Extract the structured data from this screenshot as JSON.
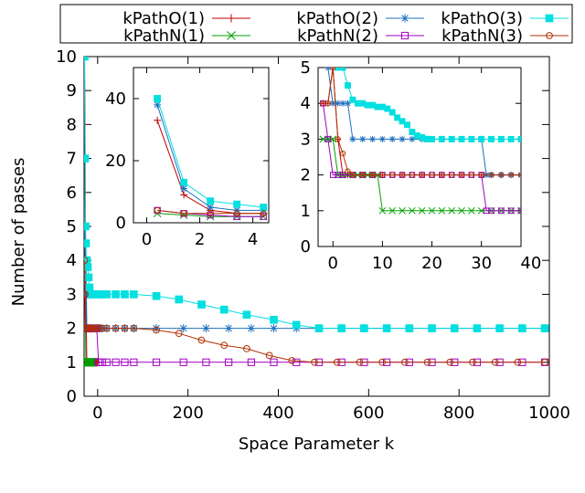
{
  "chart_data": [
    {
      "type": "line",
      "role": "main",
      "xlabel": "Space Parameter k",
      "ylabel": "Number of passes",
      "xlim": [
        -30,
        1000
      ],
      "ylim": [
        0,
        10
      ],
      "xticks": [
        0,
        200,
        400,
        600,
        800,
        1000
      ],
      "yticks": [
        0,
        1,
        2,
        3,
        4,
        5,
        6,
        7,
        8,
        9,
        10
      ],
      "grid": false,
      "legend": {
        "placement": "top",
        "entries": [
          "kPathO(1)",
          "kPathN(1)",
          "kPathO(2)",
          "kPathN(2)",
          "kPathO(3)",
          "kPathN(3)"
        ]
      },
      "series": [
        {
          "name": "kPathO(1)",
          "color": "#c00000",
          "marker": "plus",
          "x": [
            -29,
            -28,
            -27,
            -26,
            -25,
            -24,
            -22,
            -20,
            -18,
            -16,
            -14,
            -12,
            -10,
            -8,
            -6,
            -4,
            -2,
            0
          ],
          "y": [
            10,
            8,
            5,
            3,
            2,
            1,
            1,
            1,
            1,
            1,
            1,
            1,
            1,
            1,
            1,
            1,
            1,
            1
          ]
        },
        {
          "name": "kPathN(1)",
          "color": "#00a000",
          "marker": "cross",
          "x": [
            -29,
            -28,
            -27,
            -26,
            -24,
            -22,
            -20,
            -18,
            -16,
            -14,
            -12,
            -10
          ],
          "y": [
            4,
            3,
            2,
            1,
            1,
            1,
            1,
            1,
            1,
            1,
            1,
            1
          ]
        },
        {
          "name": "kPathO(2)",
          "color": "#1f6fc0",
          "marker": "star",
          "x": [
            -29,
            -28,
            -27,
            -26,
            -25,
            -24,
            -22,
            -18,
            -14,
            -10,
            -6,
            -2,
            2,
            6,
            10,
            20,
            40,
            60,
            80,
            130,
            190,
            240,
            290,
            340,
            390,
            440,
            490,
            540,
            590,
            640,
            690,
            740,
            790,
            840,
            890,
            940,
            990
          ],
          "y": [
            5,
            4,
            4,
            4,
            3,
            2,
            2,
            2,
            2,
            2,
            2,
            2,
            2,
            2,
            2,
            2,
            2,
            2,
            2,
            2,
            2,
            2,
            2,
            2,
            2,
            2,
            2,
            2,
            2,
            2,
            2,
            2,
            2,
            2,
            2,
            2,
            2
          ]
        },
        {
          "name": "kPathN(2)",
          "color": "#a000c0",
          "marker": "square-open",
          "x": [
            -29,
            -28,
            -27,
            -26,
            -25,
            -22,
            -18,
            -14,
            -10,
            -6,
            -2,
            2,
            10,
            20,
            40,
            60,
            80,
            130,
            190,
            240,
            290,
            340,
            390,
            440,
            490,
            540,
            590,
            640,
            690,
            740,
            790,
            840,
            890,
            940,
            990
          ],
          "y": [
            4,
            3,
            2,
            2,
            2,
            2,
            2,
            2,
            2,
            2,
            2,
            1,
            1,
            1,
            1,
            1,
            1,
            1,
            1,
            1,
            1,
            1,
            1,
            1,
            1,
            1,
            1,
            1,
            1,
            1,
            1,
            1,
            1,
            1,
            1
          ]
        },
        {
          "name": "kPathO(3)",
          "color": "#00e0e0",
          "marker": "square-filled",
          "x": [
            -29,
            -28,
            -27,
            -26,
            -25,
            -24,
            -22,
            -20,
            -18,
            -14,
            -10,
            -6,
            -2,
            2,
            10,
            20,
            40,
            60,
            80,
            130,
            180,
            230,
            280,
            330,
            390,
            440,
            490,
            540,
            590,
            640,
            690,
            740,
            790,
            840,
            890,
            940,
            990
          ],
          "y": [
            10,
            7,
            5,
            4.5,
            4,
            4,
            3.8,
            3.5,
            3.2,
            3,
            3,
            3,
            3,
            3,
            3,
            3,
            3,
            3,
            3,
            2.95,
            2.85,
            2.7,
            2.55,
            2.4,
            2.25,
            2.1,
            2,
            2,
            2,
            2,
            2,
            2,
            2,
            2,
            2,
            2,
            2
          ]
        },
        {
          "name": "kPathN(3)",
          "color": "#b03000",
          "marker": "circle-open",
          "x": [
            -29,
            -28,
            -27,
            -26,
            -25,
            -24,
            -22,
            -18,
            -14,
            -10,
            -6,
            -2,
            2,
            10,
            20,
            40,
            60,
            80,
            130,
            180,
            230,
            280,
            330,
            380,
            430,
            480,
            530,
            580,
            630,
            680,
            730,
            780,
            830,
            880,
            930,
            990
          ],
          "y": [
            4,
            3,
            2,
            2,
            2,
            2,
            2,
            2,
            2,
            2,
            2,
            2,
            2,
            2,
            2,
            2,
            2,
            2,
            1.95,
            1.85,
            1.65,
            1.5,
            1.4,
            1.2,
            1.05,
            1,
            1,
            1,
            1,
            1,
            1,
            1,
            1,
            1,
            1,
            1
          ]
        }
      ]
    },
    {
      "type": "line",
      "role": "inset-left",
      "xlim": [
        -0.5,
        4.6
      ],
      "ylim": [
        0,
        50
      ],
      "xticks": [
        0,
        2,
        4
      ],
      "yticks": [
        0,
        20,
        40
      ],
      "series": [
        {
          "name": "kPathO(1)",
          "color": "#c00000",
          "marker": "plus",
          "x": [
            0.4,
            1.4,
            2.4,
            3.4,
            4.4
          ],
          "y": [
            33,
            9,
            4,
            3,
            3
          ]
        },
        {
          "name": "kPathN(1)",
          "color": "#00a000",
          "marker": "cross",
          "x": [
            0.4,
            1.4,
            2.4,
            3.4,
            4.4
          ],
          "y": [
            3,
            2.5,
            2,
            2,
            2
          ]
        },
        {
          "name": "kPathO(2)",
          "color": "#1f6fc0",
          "marker": "star",
          "x": [
            0.4,
            1.4,
            2.4,
            3.4,
            4.4
          ],
          "y": [
            38,
            11,
            5,
            4,
            4
          ]
        },
        {
          "name": "kPathN(2)",
          "color": "#a000c0",
          "marker": "square-open",
          "x": [
            0.4,
            1.4,
            2.4,
            3.4,
            4.4
          ],
          "y": [
            4,
            3,
            2.5,
            2,
            2
          ]
        },
        {
          "name": "kPathO(3)",
          "color": "#00e0e0",
          "marker": "square-filled",
          "x": [
            0.4,
            1.4,
            2.4,
            3.4,
            4.4
          ],
          "y": [
            40,
            13,
            7,
            6,
            5
          ]
        },
        {
          "name": "kPathN(3)",
          "color": "#b03000",
          "marker": "circle-open",
          "x": [
            0.4,
            1.4,
            2.4,
            3.4,
            4.4
          ],
          "y": [
            4,
            3,
            3,
            3,
            3
          ]
        }
      ]
    },
    {
      "type": "line",
      "role": "inset-right",
      "xlim": [
        -3,
        38
      ],
      "ylim": [
        0,
        5
      ],
      "xticks": [
        0,
        10,
        20,
        30,
        40
      ],
      "yticks": [
        0,
        1,
        2,
        3,
        4,
        5
      ],
      "series": [
        {
          "name": "kPathO(1)",
          "color": "#c00000",
          "marker": "plus",
          "x": [
            -2,
            -1,
            0,
            1,
            2,
            3,
            4,
            6,
            8,
            10,
            14,
            18,
            22,
            26,
            30,
            34,
            38
          ],
          "y": [
            4,
            4,
            5,
            3,
            2,
            2,
            2,
            2,
            2,
            2,
            2,
            2,
            2,
            2,
            2,
            2,
            2
          ]
        },
        {
          "name": "kPathN(1)",
          "color": "#00a000",
          "marker": "cross",
          "x": [
            -2,
            -1,
            0,
            1,
            2,
            3,
            4,
            5,
            6,
            7,
            8,
            9,
            10,
            12,
            14,
            16,
            18,
            20,
            22,
            24,
            26,
            28,
            30,
            32,
            34,
            36,
            38
          ],
          "y": [
            3,
            3,
            3,
            2,
            2,
            2,
            2,
            2,
            2,
            2,
            2,
            2,
            1,
            1,
            1,
            1,
            1,
            1,
            1,
            1,
            1,
            1,
            1,
            1,
            1,
            1,
            1
          ]
        },
        {
          "name": "kPathO(2)",
          "color": "#1f6fc0",
          "marker": "star",
          "x": [
            -1,
            0,
            1,
            2,
            3,
            4,
            6,
            8,
            10,
            12,
            14,
            16,
            18,
            20,
            22,
            24,
            26,
            28,
            30,
            31,
            32,
            34,
            36,
            38
          ],
          "y": [
            5,
            4,
            4,
            4,
            4,
            3,
            3,
            3,
            3,
            3,
            3,
            3,
            3,
            3,
            3,
            3,
            3,
            3,
            3,
            2,
            2,
            2,
            2,
            2
          ]
        },
        {
          "name": "kPathN(2)",
          "color": "#a000c0",
          "marker": "square-open",
          "x": [
            -2,
            -1,
            0,
            1,
            2,
            4,
            6,
            8,
            10,
            12,
            14,
            16,
            18,
            20,
            22,
            24,
            26,
            28,
            30,
            31,
            32,
            34,
            36,
            38
          ],
          "y": [
            4,
            3,
            2,
            2,
            2,
            2,
            2,
            2,
            2,
            2,
            2,
            2,
            2,
            2,
            2,
            2,
            2,
            2,
            2,
            1,
            1,
            1,
            1,
            1
          ]
        },
        {
          "name": "kPathO(3)",
          "color": "#00e0e0",
          "marker": "square-filled",
          "x": [
            1,
            2,
            3,
            4,
            5,
            6,
            7,
            8,
            9,
            10,
            11,
            12,
            13,
            14,
            15,
            16,
            17,
            18,
            19,
            20,
            22,
            24,
            26,
            28,
            30,
            32,
            34,
            36,
            38
          ],
          "y": [
            5,
            5,
            4.5,
            4.1,
            4,
            4,
            3.95,
            3.95,
            3.9,
            3.9,
            3.85,
            3.75,
            3.6,
            3.5,
            3.4,
            3.2,
            3.1,
            3.05,
            3,
            3,
            3,
            3,
            3,
            3,
            3,
            3,
            3,
            3,
            3
          ]
        },
        {
          "name": "kPathN(3)",
          "color": "#b03000",
          "marker": "circle-open",
          "x": [
            -2,
            -1,
            0,
            1,
            2,
            3,
            4,
            6,
            8,
            10,
            12,
            14,
            16,
            18,
            20,
            22,
            24,
            26,
            28,
            30,
            32,
            34,
            36,
            38
          ],
          "y": [
            4,
            4,
            5,
            3,
            2.6,
            2.1,
            2,
            2,
            2,
            2,
            2,
            2,
            2,
            2,
            2,
            2,
            2,
            2,
            2,
            2,
            2,
            2,
            2,
            2
          ]
        }
      ]
    }
  ]
}
